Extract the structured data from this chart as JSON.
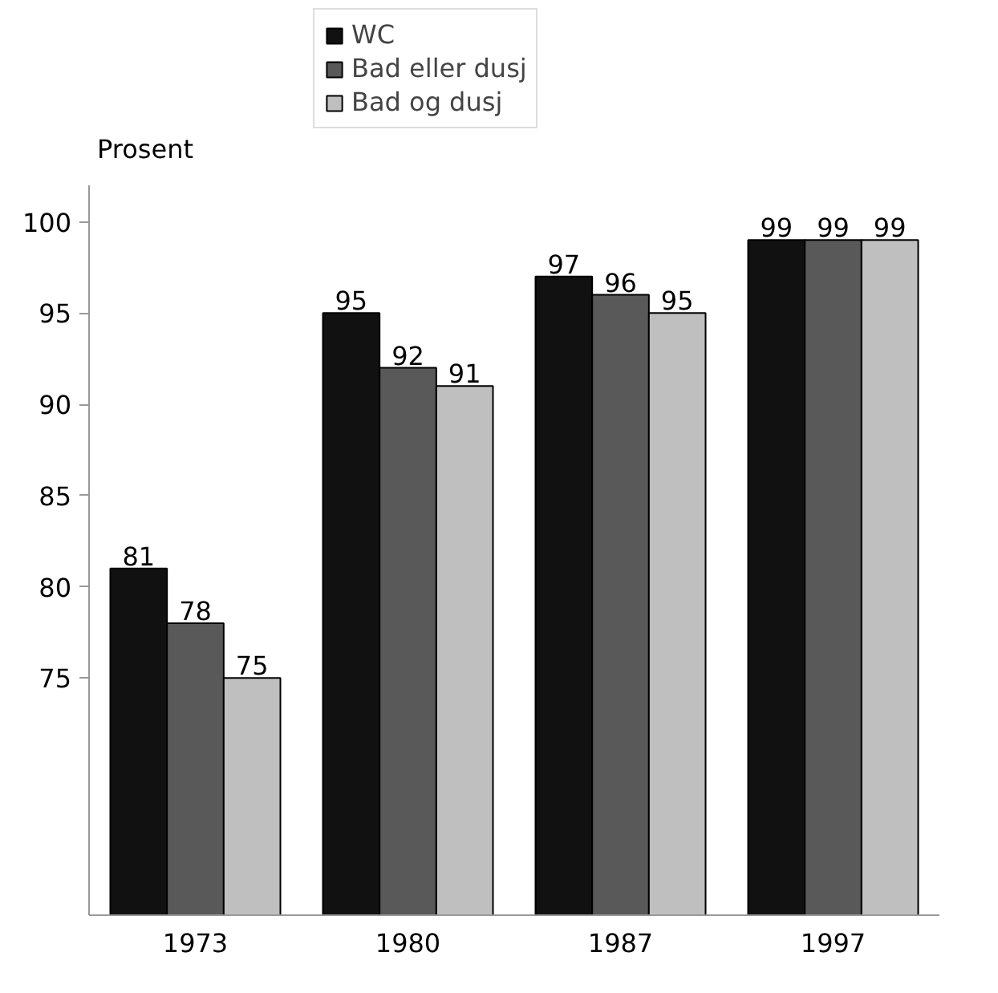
{
  "chart_data": {
    "type": "bar",
    "ylabel": "Prosent",
    "categories": [
      "1973",
      "1980",
      "1987",
      "1997"
    ],
    "series": [
      {
        "name": "WC",
        "color": "#111111",
        "values": [
          81,
          95,
          97,
          99
        ]
      },
      {
        "name": "Bad eller dusj",
        "color": "#595959",
        "values": [
          78,
          92,
          96,
          99
        ]
      },
      {
        "name": "Bad og dusj",
        "color": "#bfbfbf",
        "values": [
          75,
          91,
          95,
          99
        ]
      }
    ],
    "ylim": [
      62,
      102
    ],
    "yticks": [
      75,
      80,
      85,
      90,
      95,
      100
    ],
    "grid": false,
    "legend": "top",
    "data_labels": true
  }
}
